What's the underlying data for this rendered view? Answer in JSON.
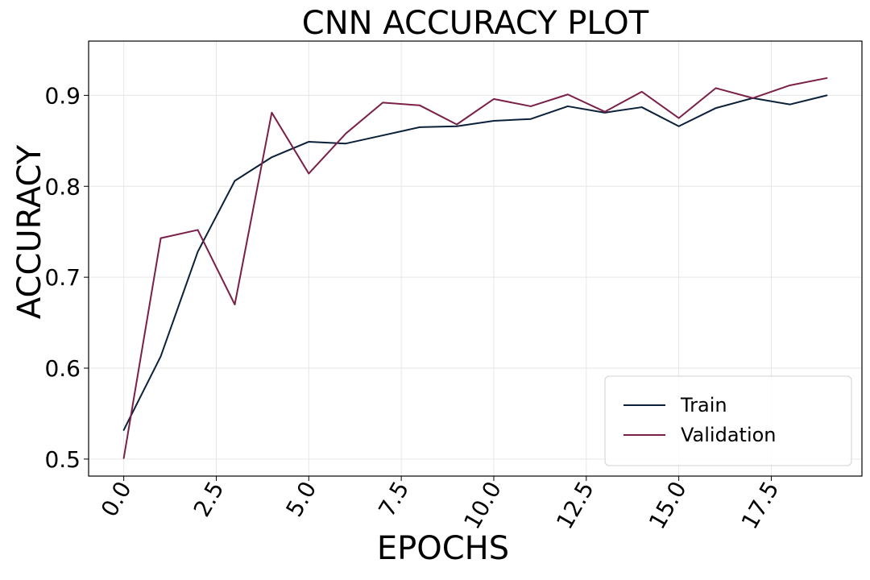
{
  "chart_data": {
    "type": "line",
    "title": "CNN ACCURACY PLOT",
    "xlabel": "EPOCHS",
    "ylabel": "ACCURACY",
    "xlim": [
      -0.95,
      19.95
    ],
    "ylim": [
      0.4813,
      0.9597
    ],
    "xticks": [
      0.0,
      2.5,
      5.0,
      7.5,
      10.0,
      12.5,
      15.0,
      17.5
    ],
    "xtick_labels": [
      "0.0",
      "2.5",
      "5.0",
      "7.5",
      "10.0",
      "12.5",
      "15.0",
      "17.5"
    ],
    "yticks": [
      0.5,
      0.6,
      0.7,
      0.8,
      0.9
    ],
    "ytick_labels": [
      "0.5",
      "0.6",
      "0.7",
      "0.8",
      "0.9"
    ],
    "grid": true,
    "legend_position": "bottom-right",
    "x": [
      0,
      1,
      2,
      3,
      4,
      5,
      6,
      7,
      8,
      9,
      10,
      11,
      12,
      13,
      14,
      15,
      16,
      17,
      18,
      19
    ],
    "series": [
      {
        "name": "Train",
        "color": "#0b2039",
        "values": [
          0.532,
          0.613,
          0.728,
          0.806,
          0.832,
          0.849,
          0.847,
          0.856,
          0.865,
          0.866,
          0.872,
          0.874,
          0.888,
          0.881,
          0.887,
          0.866,
          0.886,
          0.897,
          0.89,
          0.9
        ]
      },
      {
        "name": "Validation",
        "color": "#7a2048",
        "values": [
          0.501,
          0.743,
          0.752,
          0.67,
          0.881,
          0.814,
          0.858,
          0.892,
          0.889,
          0.868,
          0.896,
          0.888,
          0.901,
          0.882,
          0.904,
          0.875,
          0.908,
          0.897,
          0.911,
          0.919
        ]
      }
    ]
  }
}
